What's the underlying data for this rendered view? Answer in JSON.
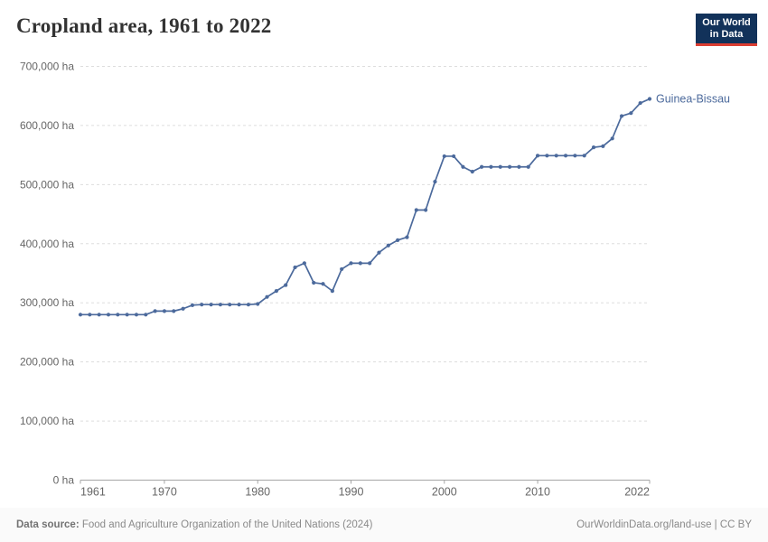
{
  "header": {
    "title": "Cropland area, 1961 to 2022",
    "logo": {
      "line1": "Our World",
      "line2": "in Data"
    }
  },
  "colors": {
    "accent": "#4c6a9c",
    "grid": "#dddddd",
    "axis": "#a5a5a5",
    "tick_text": "#666666",
    "logo_bg": "#12325a",
    "logo_accent": "#dc3e32",
    "footer_text": "#8a8a8a"
  },
  "chart_data": {
    "type": "line",
    "title": "Cropland area, 1961 to 2022",
    "unit": "ha",
    "xlabel": "",
    "ylabel": "",
    "x_range": [
      1961,
      2022
    ],
    "ylim": [
      0,
      700000
    ],
    "grid": "horizontal-dashed",
    "legend_position": "end-of-line-label",
    "yticks": [
      {
        "value": 0,
        "label": "0 ha"
      },
      {
        "value": 100000,
        "label": "100,000 ha"
      },
      {
        "value": 200000,
        "label": "200,000 ha"
      },
      {
        "value": 300000,
        "label": "300,000 ha"
      },
      {
        "value": 400000,
        "label": "400,000 ha"
      },
      {
        "value": 500000,
        "label": "500,000 ha"
      },
      {
        "value": 600000,
        "label": "600,000 ha"
      },
      {
        "value": 700000,
        "label": "700,000 ha"
      }
    ],
    "xticks": [
      {
        "value": 1961,
        "label": "1961",
        "anchor": "start"
      },
      {
        "value": 1970,
        "label": "1970",
        "anchor": "middle"
      },
      {
        "value": 1980,
        "label": "1980",
        "anchor": "middle"
      },
      {
        "value": 1990,
        "label": "1990",
        "anchor": "middle"
      },
      {
        "value": 2000,
        "label": "2000",
        "anchor": "middle"
      },
      {
        "value": 2010,
        "label": "2010",
        "anchor": "middle"
      },
      {
        "value": 2022,
        "label": "2022",
        "anchor": "end"
      }
    ],
    "series": [
      {
        "name": "Guinea-Bissau",
        "color": "#4c6a9c",
        "x": [
          1961,
          1962,
          1963,
          1964,
          1965,
          1966,
          1967,
          1968,
          1969,
          1970,
          1971,
          1972,
          1973,
          1974,
          1975,
          1976,
          1977,
          1978,
          1979,
          1980,
          1981,
          1982,
          1983,
          1984,
          1985,
          1986,
          1987,
          1988,
          1989,
          1990,
          1991,
          1992,
          1993,
          1994,
          1995,
          1996,
          1997,
          1998,
          1999,
          2000,
          2001,
          2002,
          2003,
          2004,
          2005,
          2006,
          2007,
          2008,
          2009,
          2010,
          2011,
          2012,
          2013,
          2014,
          2015,
          2016,
          2017,
          2018,
          2019,
          2020,
          2021,
          2022
        ],
        "values": [
          280000,
          280000,
          280000,
          280000,
          280000,
          280000,
          280000,
          280000,
          286000,
          286000,
          286000,
          290000,
          296000,
          297000,
          297000,
          297000,
          297000,
          297000,
          297000,
          298000,
          310000,
          320000,
          330000,
          360000,
          367000,
          334000,
          332000,
          320000,
          357000,
          367000,
          367000,
          367000,
          385000,
          397000,
          406000,
          411000,
          457000,
          457000,
          505000,
          548000,
          548000,
          530000,
          522000,
          530000,
          530000,
          530000,
          530000,
          530000,
          530000,
          549000,
          549000,
          549000,
          549000,
          549000,
          549000,
          563000,
          565000,
          578000,
          616000,
          621000,
          638000,
          645000
        ]
      }
    ]
  },
  "footer": {
    "source_label": "Data source:",
    "source_text": " Food and Agriculture Organization of the United Nations (2024)",
    "rights": "OurWorldinData.org/land-use | CC BY"
  }
}
